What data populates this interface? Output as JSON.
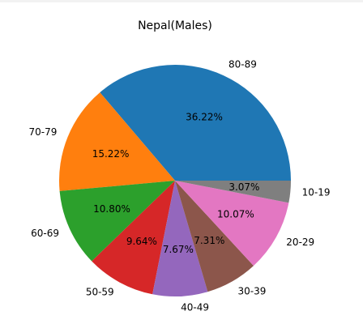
{
  "chart_data": {
    "type": "pie",
    "title": "Nepal(Males)",
    "start_angle": 0,
    "direction": "counterclockwise",
    "legend": "none",
    "slices": [
      {
        "label": "80-89",
        "value": 36.22,
        "pct_text": "36.22%",
        "color": "#1f77b4"
      },
      {
        "label": "70-79",
        "value": 15.22,
        "pct_text": "15.22%",
        "color": "#ff7f0e"
      },
      {
        "label": "60-69",
        "value": 10.8,
        "pct_text": "10.80%",
        "color": "#2ca02c"
      },
      {
        "label": "50-59",
        "value": 9.64,
        "pct_text": "9.64%",
        "color": "#d62728"
      },
      {
        "label": "40-49",
        "value": 7.67,
        "pct_text": "7.67%",
        "color": "#9467bd"
      },
      {
        "label": "30-39",
        "value": 7.31,
        "pct_text": "7.31%",
        "color": "#8c564b"
      },
      {
        "label": "20-29",
        "value": 10.07,
        "pct_text": "10.07%",
        "color": "#e377c2"
      },
      {
        "label": "10-19",
        "value": 3.07,
        "pct_text": "3.07%",
        "color": "#7f7f7f"
      }
    ]
  }
}
